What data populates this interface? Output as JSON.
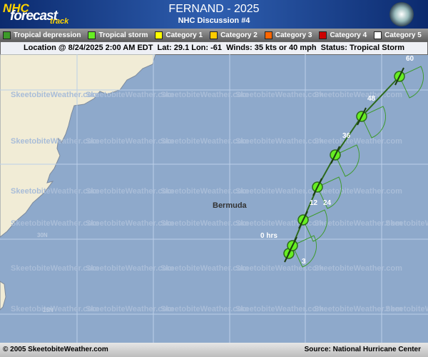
{
  "logo": {
    "line1": "NHC",
    "line2": "forecast",
    "line3": "track"
  },
  "header": {
    "title": "FERNAND - 2025",
    "subtitle": "NHC Discussion #4"
  },
  "legend": [
    "Tropical depression",
    "Tropical storm",
    "Category 1",
    "Category 2",
    "Category 3",
    "Category 4",
    "Category 5"
  ],
  "status": "Location @ 8/24/2025 2:00 AM EDT  Lat: 29.1 Lon: -61  Winds: 35 kts or 40 mph  Status: Tropical Storm",
  "map": {
    "place": "Bermuda",
    "lat_labels": [
      "30N",
      "25N"
    ],
    "watermark": "SkeetobiteWeather.com",
    "track_labels": [
      "0 hrs",
      "3",
      "12",
      "24",
      "36",
      "48",
      "60"
    ]
  },
  "footer": {
    "credit": "© 2005 SkeetobiteWeather.com",
    "source": "Source: National Hurricane Center"
  }
}
